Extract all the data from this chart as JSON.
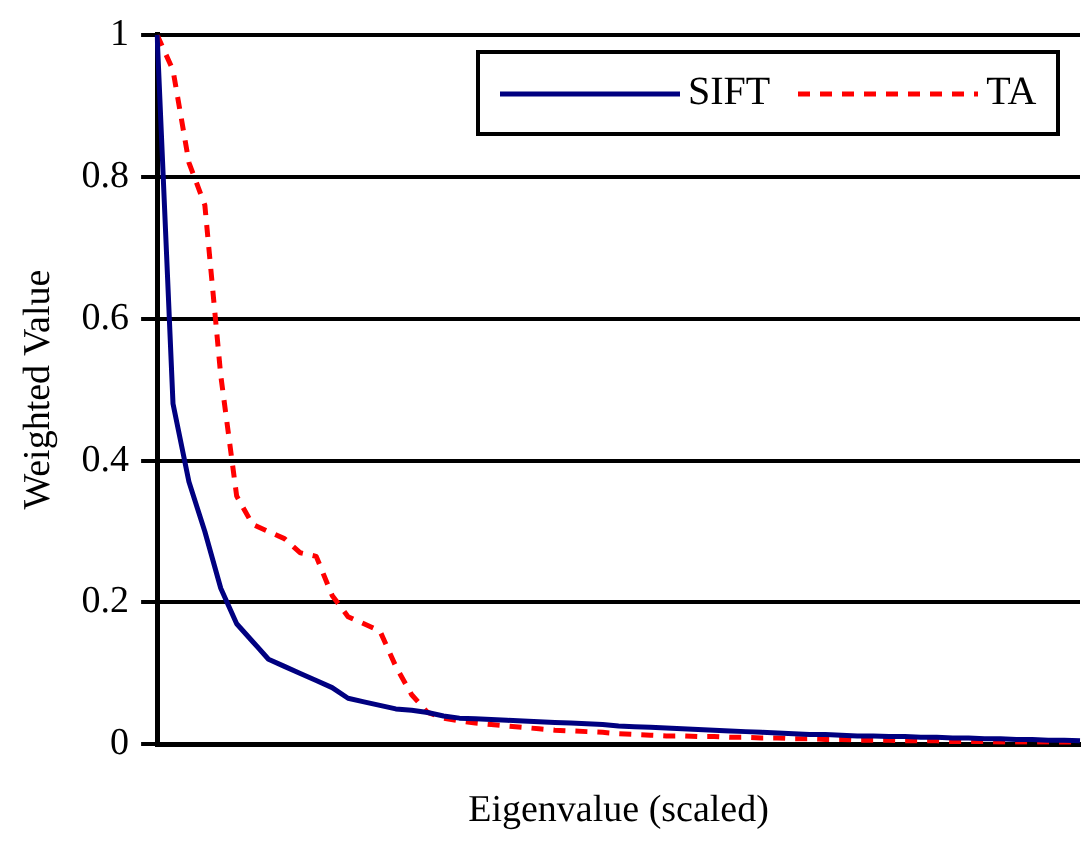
{
  "chart_data": {
    "type": "line",
    "xlabel": "Eigenvalue (scaled)",
    "ylabel": "Weighted Value",
    "categories": [
      null,
      null,
      null,
      null,
      null,
      null,
      null,
      null,
      null,
      null,
      null,
      null,
      null,
      null,
      null,
      null,
      null,
      null,
      null,
      null,
      null,
      null,
      null,
      null,
      null,
      null,
      null,
      null,
      null,
      null,
      null,
      null,
      null,
      null,
      null,
      null,
      null,
      null,
      null,
      null,
      null,
      null,
      null,
      null,
      null,
      null,
      null,
      null,
      null,
      null,
      null,
      null,
      null,
      null,
      null,
      null,
      null,
      null,
      null
    ],
    "series": [
      {
        "name": "SIFT",
        "color": "#000080",
        "line_style": "solid",
        "values": [
          1.0,
          0.48,
          0.37,
          0.3,
          0.22,
          0.17,
          0.145,
          0.12,
          0.11,
          0.1,
          0.09,
          0.08,
          0.065,
          0.06,
          0.055,
          0.05,
          0.048,
          0.045,
          0.04,
          0.037,
          0.036,
          0.035,
          0.034,
          0.033,
          0.032,
          0.031,
          0.03,
          0.029,
          0.028,
          0.026,
          0.025,
          0.024,
          0.023,
          0.022,
          0.021,
          0.02,
          0.019,
          0.018,
          0.017,
          0.016,
          0.015,
          0.014,
          0.014,
          0.013,
          0.012,
          0.012,
          0.011,
          0.011,
          0.01,
          0.01,
          0.009,
          0.009,
          0.008,
          0.008,
          0.007,
          0.007,
          0.006,
          0.006,
          0.005
        ]
      },
      {
        "name": "TA",
        "color": "#ff0000",
        "line_style": "dashed",
        "values": [
          1.0,
          0.95,
          0.82,
          0.76,
          0.52,
          0.35,
          0.31,
          0.3,
          0.29,
          0.27,
          0.265,
          0.21,
          0.18,
          0.17,
          0.16,
          0.11,
          0.07,
          0.045,
          0.037,
          0.033,
          0.03,
          0.028,
          0.026,
          0.024,
          0.022,
          0.02,
          0.019,
          0.018,
          0.017,
          0.015,
          0.014,
          0.013,
          0.012,
          0.012,
          0.011,
          0.011,
          0.01,
          0.01,
          0.009,
          0.009,
          0.008,
          0.008,
          0.007,
          0.007,
          0.006,
          0.006,
          0.006,
          0.005,
          0.005,
          0.005,
          0.004,
          0.004,
          0.004,
          0.003,
          0.003,
          0.003,
          0.003,
          0.002,
          0.002
        ]
      }
    ],
    "ylim": [
      0,
      1
    ],
    "yticks": [
      0,
      0.2,
      0.4,
      0.6,
      0.8,
      1
    ],
    "grid": "y",
    "legend": "top right",
    "tick_labels": "y",
    "marker": "none"
  }
}
